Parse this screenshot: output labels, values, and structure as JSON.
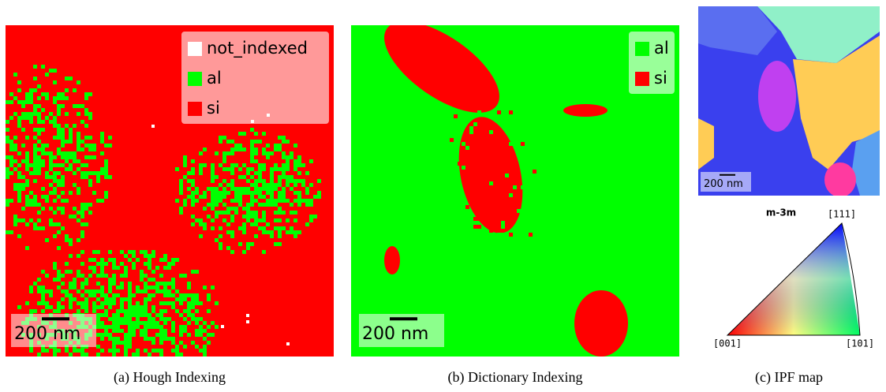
{
  "panels": [
    {
      "caption": "(a) Hough Indexing",
      "legend": [
        {
          "label": "not_indexed",
          "color": "#ffffff"
        },
        {
          "label": "al",
          "color": "#00ff00"
        },
        {
          "label": "si",
          "color": "#ff0000"
        }
      ],
      "scale_bar": "200 nm"
    },
    {
      "caption": "(b) Dictionary Indexing",
      "legend": [
        {
          "label": "al",
          "color": "#00ff00"
        },
        {
          "label": "si",
          "color": "#ff0000"
        }
      ],
      "scale_bar": "200 nm"
    },
    {
      "caption": "(c) IPF map",
      "scale_bar": "200 nm"
    }
  ],
  "ipf_key": {
    "symmetry": "m-3m",
    "top": "[111]",
    "left": "[001]",
    "right": "[101]"
  }
}
